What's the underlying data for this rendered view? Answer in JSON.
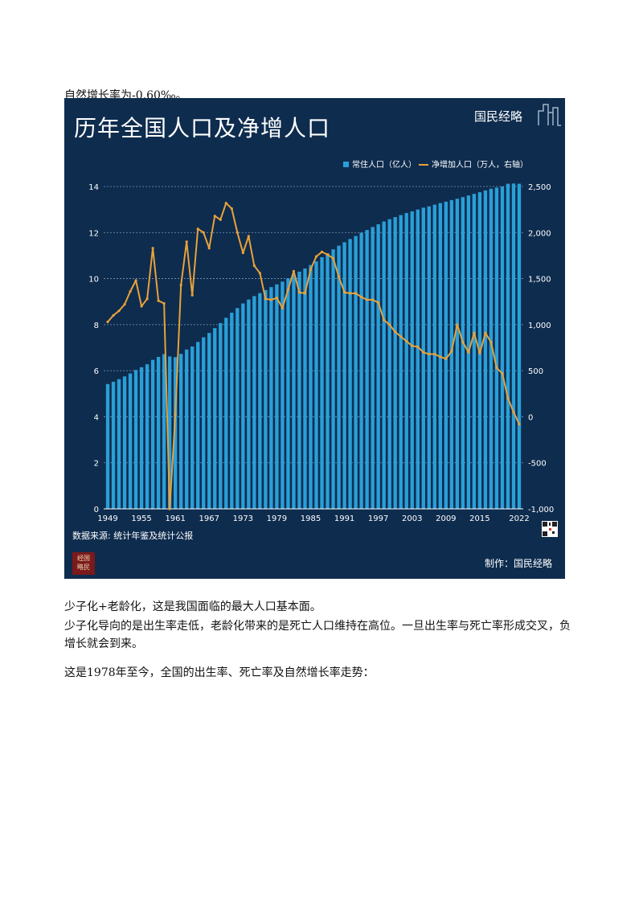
{
  "paragraphs": {
    "p1": "自然增长率为-0.60‰。",
    "p2": "少子化+老龄化，这是我国面临的最大人口基本面。",
    "p3": "少子化导向的是出生率走低，老龄化带来的是死亡人口维持在高位。一旦出生率与死亡率形成交叉，负增长就会到来。",
    "p4": "这是1978年至今，全国的出生率、死亡率及自然增长率走势："
  },
  "figure": {
    "title": "历年全国人口及净增人口",
    "brand": "国民经略",
    "source": "数据来源: 统计年鉴及统计公报",
    "credit": "制作：国民经略",
    "seal_text": "经国略民",
    "colors": {
      "background": "#0e2c4e",
      "bar": "#2a9fd8",
      "line": "#e8a23a",
      "text": "#ffffff",
      "grid": "#7f98b3"
    }
  },
  "chart_data": {
    "type": "bar",
    "legend": [
      "常住人口（亿人）",
      "净增加人口（万人，右轴）"
    ],
    "legend_position": "top-right",
    "x_tick_labels": [
      "1949",
      "1955",
      "1961",
      "1967",
      "1973",
      "1979",
      "1985",
      "1991",
      "1997",
      "2003",
      "2009",
      "2015",
      "2022"
    ],
    "y_left_ticks": [
      "0",
      "2",
      "4",
      "6",
      "8",
      "10",
      "12",
      "14"
    ],
    "y_right_ticks": [
      "-1,000",
      "-500",
      "0",
      "500",
      "1,000",
      "1,500",
      "2,000",
      "2,500"
    ],
    "ylim_left": [
      0,
      14
    ],
    "ylim_right": [
      -1000,
      2500
    ],
    "grid": "horizontal dotted",
    "years": [
      1949,
      1950,
      1951,
      1952,
      1953,
      1954,
      1955,
      1956,
      1957,
      1958,
      1959,
      1960,
      1961,
      1962,
      1963,
      1964,
      1965,
      1966,
      1967,
      1968,
      1969,
      1970,
      1971,
      1972,
      1973,
      1974,
      1975,
      1976,
      1977,
      1978,
      1979,
      1980,
      1981,
      1982,
      1983,
      1984,
      1985,
      1986,
      1987,
      1988,
      1989,
      1990,
      1991,
      1992,
      1993,
      1994,
      1995,
      1996,
      1997,
      1998,
      1999,
      2000,
      2001,
      2002,
      2003,
      2004,
      2005,
      2006,
      2007,
      2008,
      2009,
      2010,
      2011,
      2012,
      2013,
      2014,
      2015,
      2016,
      2017,
      2018,
      2019,
      2020,
      2021,
      2022
    ],
    "series": [
      {
        "name": "常住人口（亿人）",
        "type": "bar",
        "axis": "left",
        "values": [
          5.42,
          5.52,
          5.63,
          5.75,
          5.88,
          6.03,
          6.15,
          6.28,
          6.47,
          6.6,
          6.72,
          6.62,
          6.59,
          6.73,
          6.92,
          7.05,
          7.25,
          7.45,
          7.64,
          7.85,
          8.07,
          8.3,
          8.52,
          8.72,
          8.92,
          9.09,
          9.24,
          9.37,
          9.5,
          9.63,
          9.75,
          9.87,
          10.01,
          10.17,
          10.3,
          10.44,
          10.59,
          10.75,
          10.93,
          11.1,
          11.27,
          11.43,
          11.58,
          11.72,
          11.85,
          11.99,
          12.11,
          12.24,
          12.36,
          12.48,
          12.58,
          12.67,
          12.76,
          12.85,
          12.92,
          13.0,
          13.08,
          13.14,
          13.21,
          13.28,
          13.34,
          13.41,
          13.47,
          13.54,
          13.61,
          13.68,
          13.75,
          13.83,
          13.9,
          13.95,
          14.0,
          14.12,
          14.13,
          14.12
        ]
      },
      {
        "name": "净增加人口（万人，右轴）",
        "type": "line",
        "axis": "right",
        "values": [
          1030,
          1100,
          1150,
          1220,
          1360,
          1480,
          1200,
          1280,
          1830,
          1260,
          1230,
          -1000,
          20,
          1430,
          1900,
          1320,
          2040,
          2000,
          1830,
          2180,
          2140,
          2320,
          2260,
          2000,
          1780,
          1960,
          1640,
          1560,
          1280,
          1270,
          1290,
          1180,
          1380,
          1580,
          1350,
          1340,
          1600,
          1740,
          1790,
          1760,
          1720,
          1520,
          1350,
          1340,
          1340,
          1300,
          1270,
          1270,
          1240,
          1050,
          1000,
          920,
          870,
          820,
          770,
          760,
          700,
          680,
          680,
          650,
          630,
          710,
          1000,
          810,
          700,
          910,
          690,
          910,
          810,
          530,
          470,
          200,
          50,
          -80
        ]
      }
    ]
  }
}
